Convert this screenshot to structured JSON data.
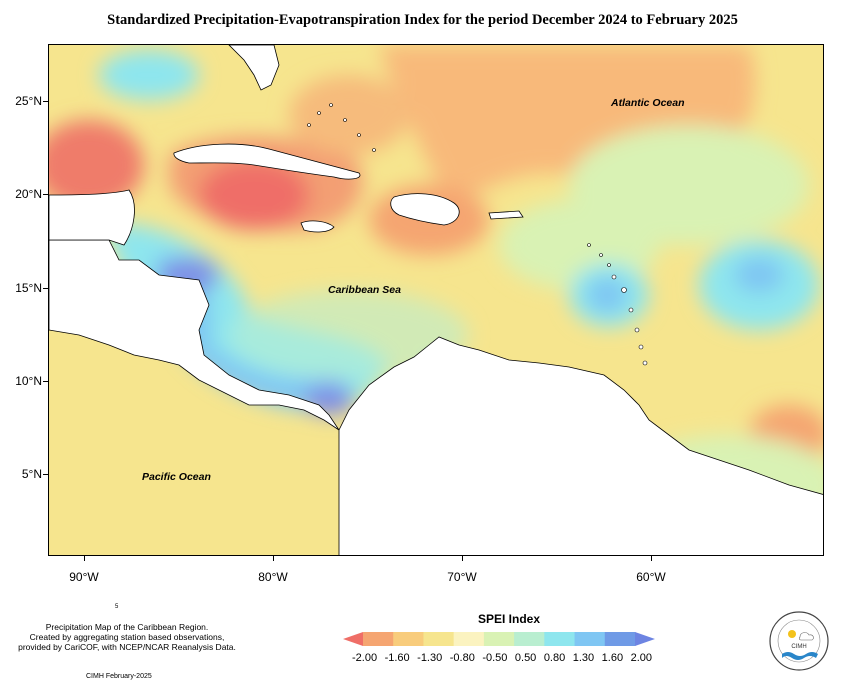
{
  "title": "Standardized Precipitation-Evapotranspiration Index for the period December 2024 to February 2025",
  "map": {
    "lat_labels": [
      "25°N",
      "20°N",
      "15°N",
      "10°N",
      "5°N"
    ],
    "lon_labels": [
      "90°W",
      "80°W",
      "70°W",
      "60°W"
    ],
    "place_labels": {
      "atlantic": "Atlantic Ocean",
      "caribbean": "Caribbean Sea",
      "pacific": "Pacific Ocean"
    },
    "colors": {
      "very_dry": "#ef6e67",
      "dry": "#f5a571",
      "moderately_dry": "#f8cc7c",
      "slightly_dry": "#f6e58e",
      "near_normal": "#d9f2b4",
      "slightly_wet": "#b9eed0",
      "wet": "#8ee6ee",
      "moderately_wet": "#7fc6f3",
      "very_wet": "#7f8fe6",
      "land": "#ffffff"
    }
  },
  "legend": {
    "title": "SPEI Index",
    "ticks": [
      "-2.00",
      "-1.60",
      "-1.30",
      "-0.80",
      "-0.50",
      "0.50",
      "0.80",
      "1.30",
      "1.60",
      "2.00"
    ],
    "colors": [
      "#ef6e67",
      "#f5a571",
      "#f8cc7c",
      "#f6e58e",
      "#fbf3c0",
      "#d9f2b4",
      "#b9eed0",
      "#8ee6ee",
      "#7fc6f3",
      "#6f9ae6",
      "#6d84e2"
    ]
  },
  "notes": {
    "line1": "Precipitation Map of the Caribbean Region.",
    "line2": "Created by aggregating station based observations,",
    "line3": "provided by CariCOF, with NCEP/NCAR Reanalysis Data.",
    "footer": "CIMH February-2025",
    "small_mark": "5"
  },
  "logo": {
    "text": "CIMH"
  }
}
